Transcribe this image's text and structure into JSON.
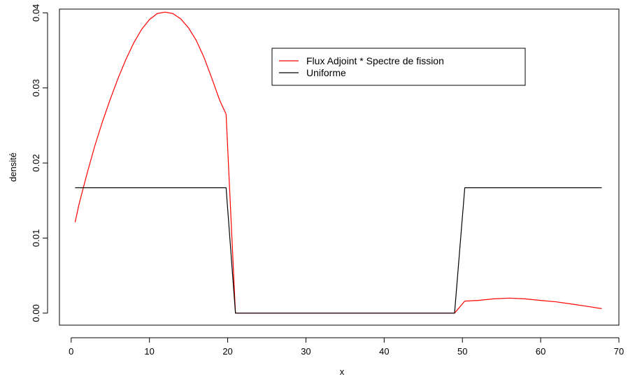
{
  "chart_data": {
    "type": "line",
    "title": "",
    "xlabel": "x",
    "ylabel": "densité",
    "xlim": [
      -1.5,
      70
    ],
    "ylim": [
      -0.0016,
      0.0405
    ],
    "xticks": [
      0,
      10,
      20,
      30,
      40,
      50,
      60,
      70
    ],
    "xtick_labels": [
      "0",
      "10",
      "20",
      "30",
      "40",
      "50",
      "60",
      "70"
    ],
    "yticks": [
      0.0,
      0.01,
      0.02,
      0.03,
      0.04
    ],
    "ytick_labels": [
      "0.00",
      "0.01",
      "0.02",
      "0.03",
      "0.04"
    ],
    "grid": false,
    "legend_position": "top-right",
    "series": [
      {
        "name": "Flux Adjoint * Spectre de fission",
        "color": "#ff0000",
        "x": [
          0.5,
          1,
          2,
          3,
          4,
          5,
          6,
          7,
          8,
          9,
          10,
          11,
          12,
          13,
          14,
          15,
          16,
          17,
          18,
          19,
          19.8,
          21,
          22,
          25,
          30,
          35,
          40,
          45,
          49,
          50.3,
          52,
          54,
          56,
          58,
          60,
          62,
          64,
          66,
          67.8
        ],
        "y": [
          0.0121,
          0.0145,
          0.0185,
          0.0222,
          0.0255,
          0.0285,
          0.0313,
          0.0338,
          0.036,
          0.0378,
          0.0391,
          0.0399,
          0.0401,
          0.0399,
          0.0392,
          0.038,
          0.0363,
          0.034,
          0.0312,
          0.0283,
          0.0265,
          0.0,
          0.0,
          0.0,
          0.0,
          0.0,
          0.0,
          0.0,
          0.0,
          0.0016,
          0.0017,
          0.0019,
          0.002,
          0.0019,
          0.0017,
          0.0015,
          0.0012,
          0.0009,
          0.0006
        ]
      },
      {
        "name": "Uniforme",
        "color": "#000000",
        "x": [
          0.5,
          19.8,
          21,
          49,
          50.3,
          67.8
        ],
        "y": [
          0.0167,
          0.0167,
          0.0,
          0.0,
          0.0167,
          0.0167
        ]
      }
    ]
  }
}
